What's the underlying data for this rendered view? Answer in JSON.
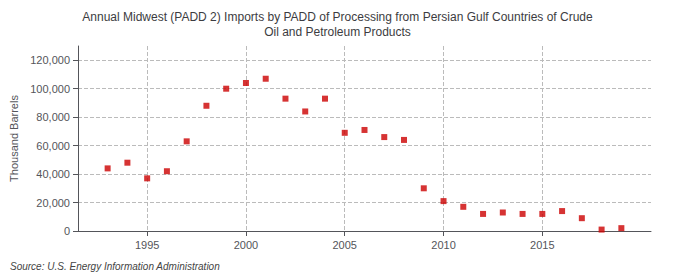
{
  "chart_data": {
    "type": "scatter",
    "title": "Annual Midwest (PADD 2) Imports by PADD of Processing from Persian Gulf Countries of Crude\nOil and Petroleum Products",
    "ylabel": "Thousand Barrels",
    "source": "Source: U.S. Energy Information Administration",
    "x": [
      1993,
      1994,
      1995,
      1996,
      1997,
      1998,
      1999,
      2000,
      2001,
      2002,
      2003,
      2004,
      2005,
      2006,
      2007,
      2008,
      2009,
      2010,
      2011,
      2012,
      2013,
      2014,
      2015,
      2016,
      2017,
      2018,
      2019
    ],
    "values": [
      44000,
      48000,
      37000,
      42000,
      63000,
      88000,
      100000,
      104000,
      107000,
      93000,
      84000,
      93000,
      69000,
      71000,
      66000,
      64000,
      30000,
      21000,
      17000,
      12000,
      13000,
      12000,
      12000,
      14000,
      9000,
      1000,
      2000
    ],
    "color": "#cc0000",
    "marker": "square",
    "xlim": [
      1991.5,
      2020.5
    ],
    "xticks": [
      1995,
      2000,
      2005,
      2010,
      2015
    ],
    "ylim": [
      0,
      130000
    ],
    "yticks": [
      0,
      {
        "value": 20000,
        "label": "20,000"
      },
      {
        "value": 40000,
        "label": "40,000"
      },
      {
        "value": 60000,
        "label": "60,000"
      },
      {
        "value": 80000,
        "label": "80,000"
      },
      {
        "value": 100000,
        "label": "100,000"
      },
      {
        "value": 120000,
        "label": "120,000"
      }
    ],
    "grid": true
  }
}
